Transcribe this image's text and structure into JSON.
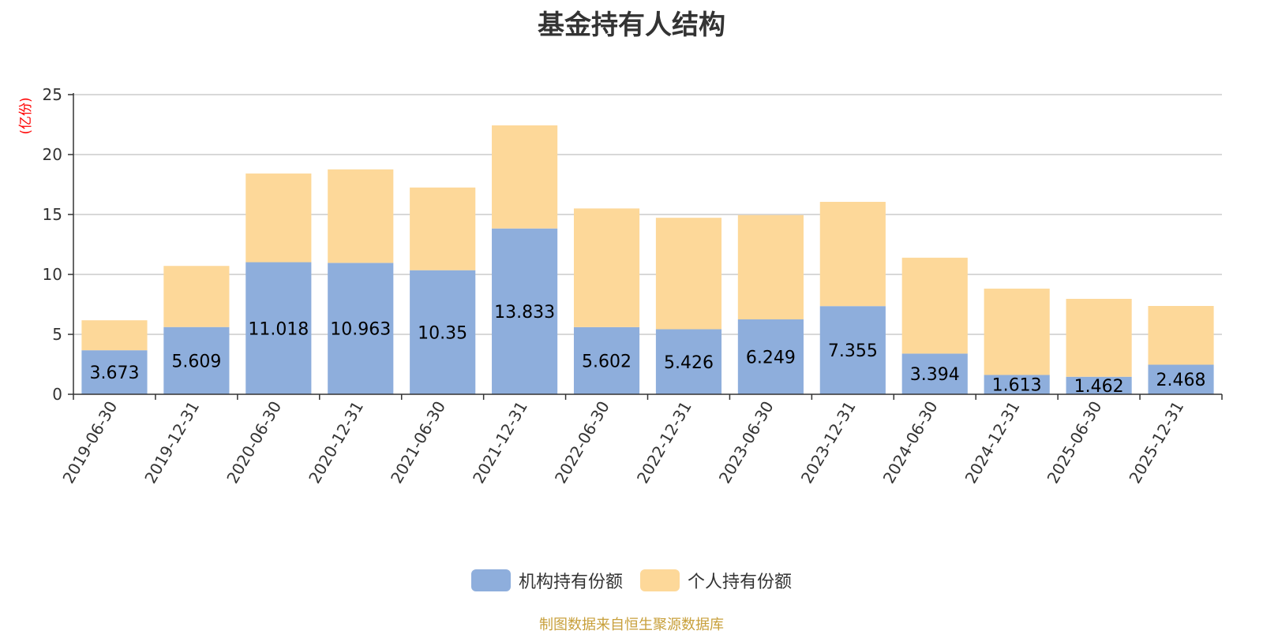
{
  "chart_data": {
    "type": "bar",
    "stacked": true,
    "title": "基金持有人结构",
    "ylabel": "(亿份)",
    "xlabel": "",
    "ylim": [
      0,
      25
    ],
    "yticks": [
      0,
      5,
      10,
      15,
      20,
      25
    ],
    "grid": true,
    "categories": [
      "2019-06-30",
      "2019-12-31",
      "2020-06-30",
      "2020-12-31",
      "2021-06-30",
      "2021-12-31",
      "2022-06-30",
      "2022-12-31",
      "2023-06-30",
      "2023-12-31",
      "2024-06-30",
      "2024-12-31",
      "2025-06-30",
      "2025-12-31"
    ],
    "series": [
      {
        "name": "机构持有份额",
        "color": "#8eaedc",
        "values": [
          3.673,
          5.609,
          11.018,
          10.963,
          10.35,
          13.833,
          5.602,
          5.426,
          6.249,
          7.355,
          3.394,
          1.613,
          1.462,
          2.468
        ],
        "labels": [
          "3.673",
          "5.609",
          "11.018",
          "10.963",
          "10.35",
          "13.833",
          "5.602",
          "5.426",
          "6.249",
          "7.355",
          "3.394",
          "1.613",
          "1.462",
          "2.468"
        ]
      },
      {
        "name": "个人持有份额",
        "color": "#fdd899",
        "values": [
          2.5,
          5.1,
          7.4,
          7.8,
          6.9,
          8.6,
          9.9,
          9.3,
          8.7,
          8.7,
          8.0,
          7.2,
          6.5,
          4.9
        ]
      }
    ],
    "legend_position": "bottom-center",
    "source": "制图数据来自恒生聚源数据库"
  }
}
